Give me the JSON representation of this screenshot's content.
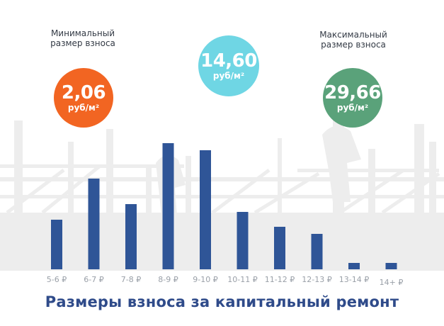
{
  "stats": {
    "min": {
      "label": "Минимальный размер взноса",
      "value": "2,06",
      "unit": "руб/м²",
      "color": "#f26522"
    },
    "avg": {
      "value": "14,60",
      "unit": "руб/м²",
      "color": "#6fd6e4"
    },
    "max": {
      "label": "Максимальный размер взноса",
      "value": "29,66",
      "unit": "руб/м²",
      "color": "#5aa27a"
    }
  },
  "colors": {
    "bar": "#2f5597",
    "title": "#2f4b8a",
    "axis_text": "#9aa0a8",
    "backdrop": "#ededed"
  },
  "chart_data": {
    "type": "bar",
    "title": "Размеры взноса за капитальный ремонт",
    "categories": [
      "5-6 ₽",
      "6-7 ₽",
      "7-8 ₽",
      "8-9 ₽",
      "9-10 ₽",
      "10-11 ₽",
      "11-12 ₽",
      "12-13 ₽",
      "13-14 ₽",
      "14+ ₽"
    ],
    "values": [
      70,
      128,
      92,
      178,
      168,
      81,
      60,
      50,
      9,
      9
    ],
    "ylim": [
      0,
      180
    ],
    "xlabel": "",
    "ylabel": "",
    "grid": false,
    "legend": "none"
  }
}
